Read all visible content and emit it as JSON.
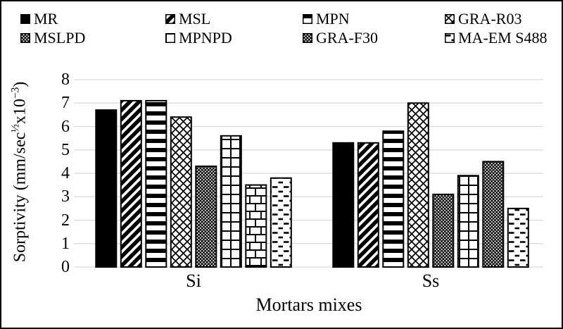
{
  "figure": {
    "background": "#ffffff",
    "border_color": "#000000",
    "gridline_color": "#d9d9d9",
    "bar_outline_color": "#000000",
    "bar_fill_foreground": "#000000",
    "bar_fill_background": "#ffffff"
  },
  "chart_data": {
    "type": "bar",
    "title": "",
    "xlabel": "Mortars mixes",
    "ylabel": {
      "prefix": "Sorptivity (mm/sec",
      "sup1": "½",
      "mid": "x10",
      "sup2": "−3",
      "suffix": ")"
    },
    "ylim": [
      0,
      8
    ],
    "yticks": [
      "0",
      "1",
      "2",
      "3",
      "4",
      "5",
      "6",
      "7",
      "8"
    ],
    "grid": "horizontal gridlines at every integer",
    "legend_position": "top, two rows of four",
    "categories": [
      "Si",
      "Ss"
    ],
    "series": [
      {
        "name": "MR",
        "pattern": "solid",
        "values": [
          6.7,
          5.3
        ]
      },
      {
        "name": "MSL",
        "pattern": "diag",
        "values": [
          7.1,
          5.3
        ]
      },
      {
        "name": "MPN",
        "pattern": "hlines",
        "values": [
          7.1,
          5.8
        ]
      },
      {
        "name": "GRA-R03",
        "pattern": "lattice",
        "values": [
          6.4,
          7.0
        ]
      },
      {
        "name": "MSLPD",
        "pattern": "densecross",
        "values": [
          4.3,
          3.1
        ]
      },
      {
        "name": "MPNPD",
        "pattern": "grid",
        "values": [
          5.6,
          3.9
        ]
      },
      {
        "name": "GRA-F30",
        "pattern": "densecross",
        "patterns_by_category": [
          "brick",
          "densecross"
        ],
        "values": [
          3.5,
          4.5
        ]
      },
      {
        "name": "MA-EM S488",
        "pattern": "dash",
        "values": [
          3.8,
          2.5
        ]
      }
    ]
  }
}
